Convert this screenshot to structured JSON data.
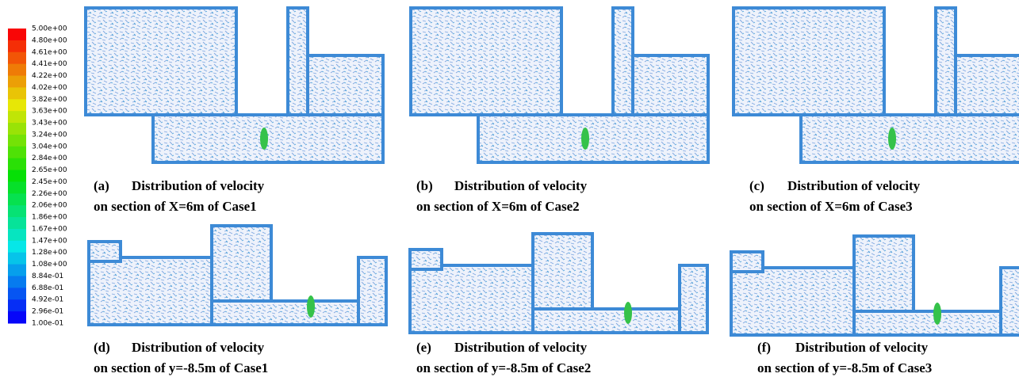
{
  "legend": {
    "labels": [
      "5.00e+00",
      "4.80e+00",
      "4.61e+00",
      "4.41e+00",
      "4.22e+00",
      "4.02e+00",
      "3.82e+00",
      "3.63e+00",
      "3.43e+00",
      "3.24e+00",
      "3.04e+00",
      "2.84e+00",
      "2.65e+00",
      "2.45e+00",
      "2.26e+00",
      "2.06e+00",
      "1.86e+00",
      "1.67e+00",
      "1.47e+00",
      "1.28e+00",
      "1.08e+00",
      "8.84e-01",
      "6.88e-01",
      "4.92e-01",
      "2.96e-01",
      "1.00e-01"
    ]
  },
  "panels": [
    {
      "label": "(a)",
      "title": "Distribution of velocity",
      "subtitle": "on section of X=6m of Case1"
    },
    {
      "label": "(b)",
      "title": "Distribution of velocity",
      "subtitle": "on section of X=6m of Case2"
    },
    {
      "label": "(c)",
      "title": "Distribution of velocity",
      "subtitle": "on section of X=6m of Case3"
    },
    {
      "label": "(d)",
      "title": "Distribution of velocity",
      "subtitle": "on section of y=-8.5m of Case1"
    },
    {
      "label": "(e)",
      "title": "Distribution of velocity",
      "subtitle": "on section of y=-8.5m of Case2"
    },
    {
      "label": "(f)",
      "title": "Distribution of velocity",
      "subtitle": "on section of y=-8.5m of Case3"
    }
  ]
}
